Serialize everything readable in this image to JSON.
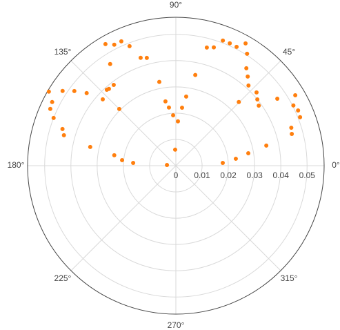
{
  "chart_data": {
    "type": "polar-scatter",
    "rlim": [
      0,
      0.0565
    ],
    "rticks": [
      0,
      0.01,
      0.02,
      0.03,
      0.04,
      0.05
    ],
    "thetaticks": [
      {
        "value": 0,
        "label": "0°"
      },
      {
        "value": 45,
        "label": "45°"
      },
      {
        "value": 90,
        "label": "90°"
      },
      {
        "value": 135,
        "label": "135°"
      },
      {
        "value": 180,
        "label": "180°"
      },
      {
        "value": 225,
        "label": "225°"
      },
      {
        "value": 270,
        "label": "270°"
      },
      {
        "value": 315,
        "label": "315°"
      }
    ],
    "grid": true,
    "color": "#ff7f0e",
    "theta": [
      69.4,
      66.2,
      62.9,
      75.3,
      72.2,
      60.3,
      57.5,
      54.1,
      51.1,
      47.8,
      77.9,
      42.2,
      39.1,
      35.9,
      45.3,
      33.4,
      30.5,
      27.1,
      24.3,
      21.3,
      18.2,
      15.3,
      12.5,
      9.7,
      6.6,
      3.4,
      81.5,
      83.9,
      87.3,
      93.1,
      92.5,
      175.6,
      120.1,
      117.0,
      113.7,
      111.2,
      108.1,
      105.1,
      122.9,
      149.8,
      152.8,
      155.7,
      158.7,
      146.6,
      143.7,
      140.9,
      131.1,
      127.6,
      132.3,
      101.2,
      99.2,
      96.8,
      137.8,
      135,
      162.1,
      164.8,
      167.7,
      170.4,
      174.1,
      176.3
    ],
    "r": [
      0.0509,
      0.0509,
      0.0508,
      0.0465,
      0.0473,
      0.0536,
      0.0505,
      0.0458,
      0.0436,
      0.0412,
      0.0353,
      0.0415,
      0.04,
      0.039,
      0.0341,
      0.0463,
      0.0528,
      0.0503,
      0.0511,
      0.0508,
      0.0463,
      0.0458,
      0.0353,
      0.028,
      0.023,
      0.0179,
      0.0266,
      0.0222,
      0.0169,
      0.0192,
      0.0061,
      0.0034,
      0.0535,
      0.0517,
      0.0517,
      0.0488,
      0.0432,
      0.0425,
      0.0461,
      0.056,
      0.053,
      0.0525,
      0.05,
      0.0517,
      0.048,
      0.0438,
      0.0388,
      0.0388,
      0.0391,
      0.0325,
      0.0248,
      0.0223,
      0.0376,
      0.0305,
      0.0454,
      0.0442,
      0.0334,
      0.0238,
      0.0206,
      0.0163
    ]
  }
}
